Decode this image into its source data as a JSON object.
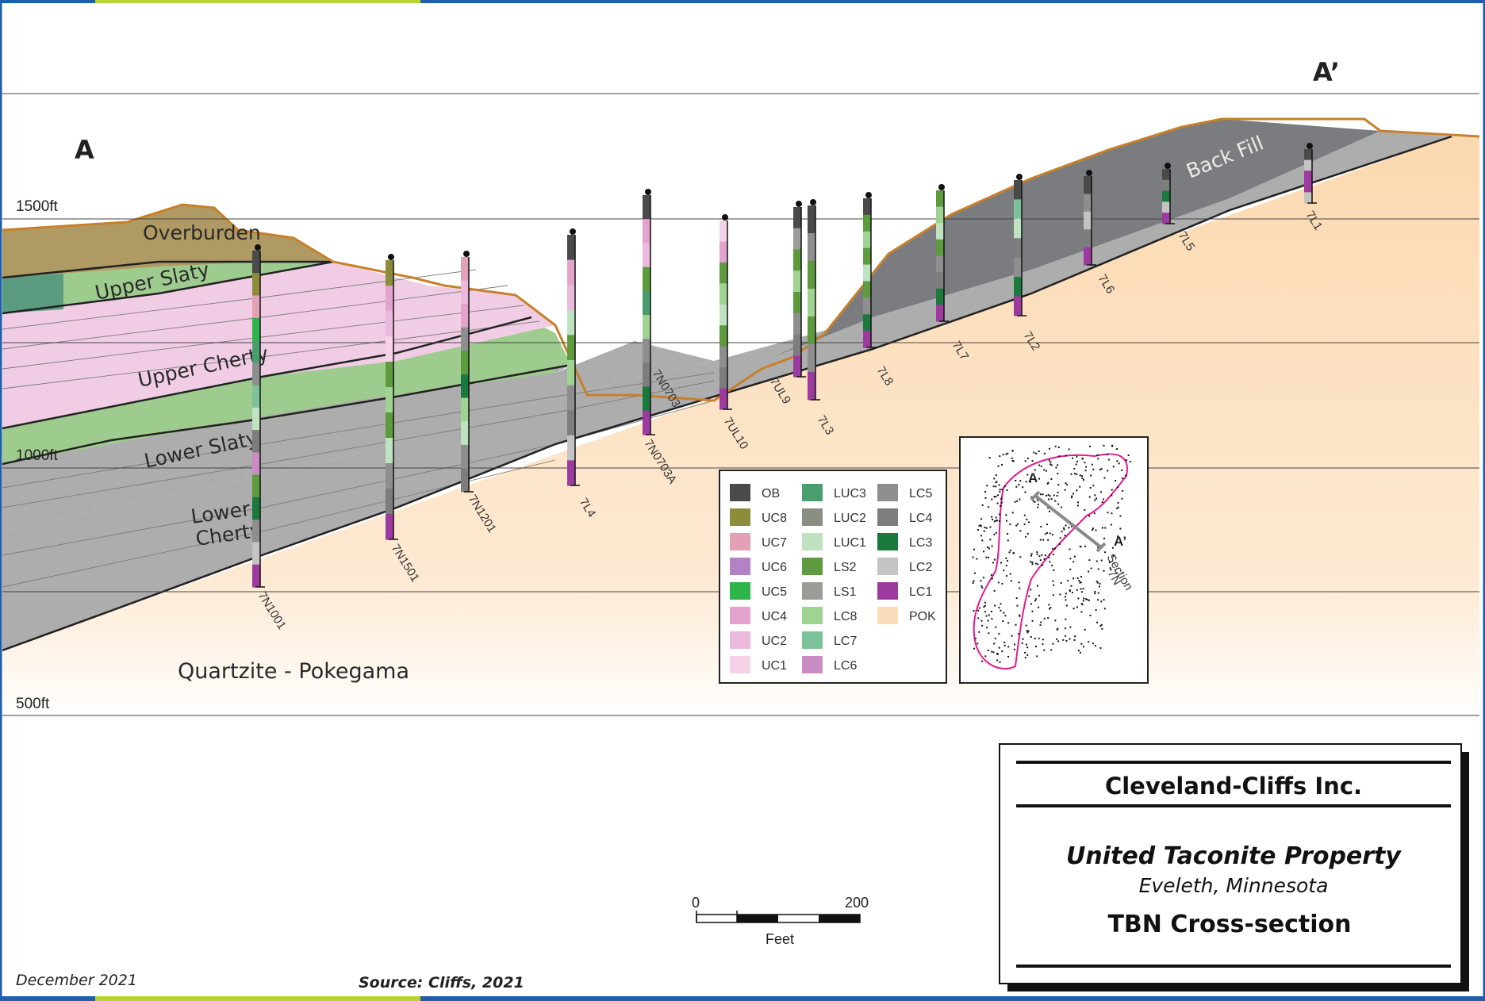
{
  "elevations": [
    "1500ft",
    "1000ft",
    "500ft"
  ],
  "section_labels": {
    "start": "A",
    "end": "A’"
  },
  "units": {
    "overburden": "Overburden",
    "upper_slaty": "Upper Slaty",
    "upper_cherty": "Upper Cherty",
    "lower_slaty": "Lower Slaty",
    "lower_cherty_1": "Lower",
    "lower_cherty_2": "Cherty",
    "back_fill": "Back Fill",
    "quartzite": "Quartzite - Pokegama"
  },
  "drillholes": [
    "7N1001",
    "7N1501",
    "7N1201",
    "7L4",
    "7N0703",
    "7N0703A",
    "7UL10",
    "7UL9",
    "7L3",
    "7L8",
    "7L7",
    "7L2",
    "7L6",
    "7L5",
    "7L1"
  ],
  "legend": [
    {
      "code": "OB",
      "color": "#4a4a4a"
    },
    {
      "code": "UC8",
      "color": "#8c8c3a"
    },
    {
      "code": "UC7",
      "color": "#e3a1b6"
    },
    {
      "code": "UC6",
      "color": "#b282c4"
    },
    {
      "code": "UC5",
      "color": "#2db54a"
    },
    {
      "code": "UC4",
      "color": "#e3a3cc"
    },
    {
      "code": "UC2",
      "color": "#ebb9dc"
    },
    {
      "code": "UC1",
      "color": "#f6d2e8"
    },
    {
      "code": "LUC3",
      "color": "#4a9e6e"
    },
    {
      "code": "LUC2",
      "color": "#8a8f84"
    },
    {
      "code": "LUC1",
      "color": "#bfe3c0"
    },
    {
      "code": "LS2",
      "color": "#5e9a3e"
    },
    {
      "code": "LS1",
      "color": "#9c9c98"
    },
    {
      "code": "LC8",
      "color": "#9fd392"
    },
    {
      "code": "LC7",
      "color": "#7cc39a"
    },
    {
      "code": "LC6",
      "color": "#c98cc4"
    },
    {
      "code": "LC5",
      "color": "#8e8e8e"
    },
    {
      "code": "LC4",
      "color": "#7d7d7d"
    },
    {
      "code": "LC3",
      "color": "#1a7a3e"
    },
    {
      "code": "LC2",
      "color": "#c4c4c4"
    },
    {
      "code": "LC1",
      "color": "#9c3aa0"
    },
    {
      "code": "POK",
      "color": "#fbdcb8"
    }
  ],
  "inset": {
    "a": "A",
    "a_prime": "A’",
    "section": "Section",
    "section_id": "7N"
  },
  "scale_bar": {
    "zero": "0",
    "max": "200",
    "unit": "Feet"
  },
  "title_block": {
    "company": "Cleveland-Cliffs Inc.",
    "property": "United Taconite Property",
    "location": "Eveleth, Minnesota",
    "figure": "TBN Cross-section"
  },
  "footer": {
    "date": "December 2021",
    "source": "Source: Cliffs, 2021"
  },
  "colors": {
    "accent_blue": "#1f5ea8",
    "accent_green": "#b8d431",
    "topo": "#c7802a"
  }
}
